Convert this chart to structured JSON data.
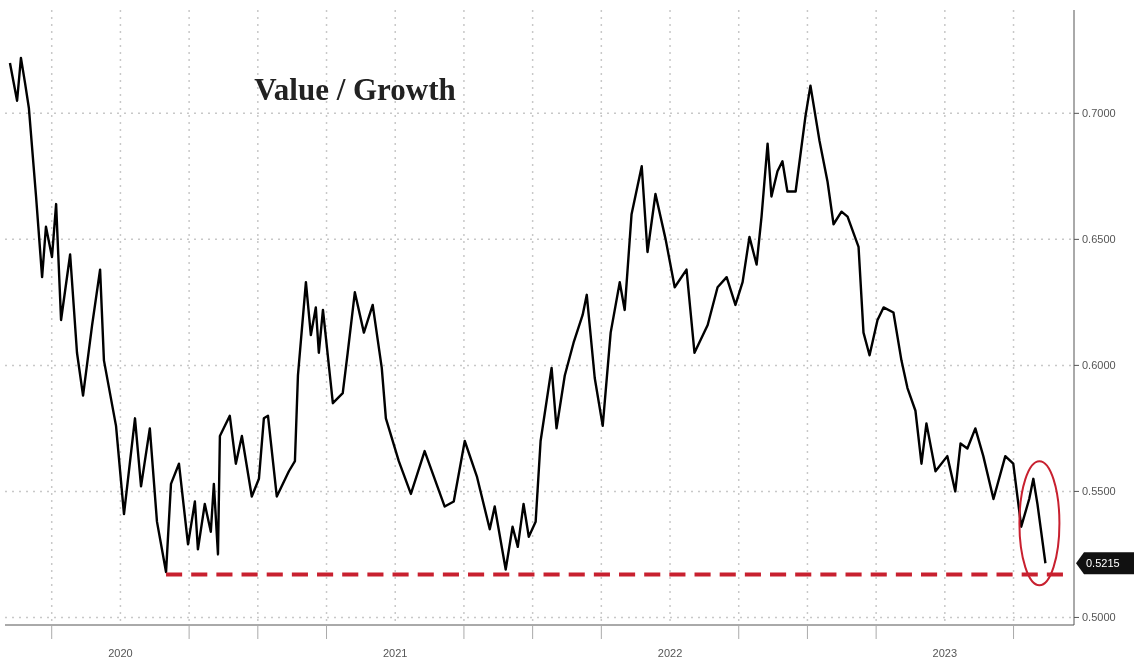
{
  "chart_data": {
    "type": "line",
    "title": "Value / Growth",
    "x": [
      2020.098,
      2020.124,
      2020.138,
      2020.153,
      2020.167,
      2020.193,
      2020.215,
      2020.229,
      2020.251,
      2020.266,
      2020.284,
      2020.317,
      2020.342,
      2020.364,
      2020.397,
      2020.426,
      2020.44,
      2020.484,
      2020.513,
      2020.553,
      2020.575,
      2020.607,
      2020.633,
      2020.666,
      2020.684,
      2020.713,
      2020.746,
      2020.771,
      2020.782,
      2020.807,
      2020.829,
      2020.84,
      2020.855,
      2020.862,
      2020.898,
      2020.92,
      2020.942,
      2020.978,
      2021.004,
      2021.022,
      2021.037,
      2021.069,
      2021.113,
      2021.135,
      2021.146,
      2021.175,
      2021.193,
      2021.211,
      2021.222,
      2021.237,
      2021.273,
      2021.309,
      2021.327,
      2021.353,
      2021.386,
      2021.418,
      2021.451,
      2021.466,
      2021.513,
      2021.557,
      2021.607,
      2021.68,
      2021.713,
      2021.753,
      2021.797,
      2021.844,
      2021.862,
      2021.902,
      2021.927,
      2021.946,
      2021.967,
      2021.986,
      2022.011,
      2022.029,
      2022.069,
      2022.087,
      2022.117,
      2022.149,
      2022.182,
      2022.197,
      2022.226,
      2022.255,
      2022.284,
      2022.317,
      2022.335,
      2022.36,
      2022.397,
      2022.418,
      2022.447,
      2022.484,
      2022.517,
      2022.56,
      2022.589,
      2022.637,
      2022.673,
      2022.706,
      2022.738,
      2022.764,
      2022.789,
      2022.815,
      2022.833,
      2022.855,
      2022.869,
      2022.891,
      2022.909,
      2022.927,
      2022.957,
      2022.993,
      2023.011,
      2023.044,
      2023.073,
      2023.095,
      2023.124,
      2023.146,
      2023.186,
      2023.204,
      2023.226,
      2023.255,
      2023.277,
      2023.313,
      2023.342,
      2023.364,
      2023.393,
      2023.415,
      2023.433,
      2023.466,
      2023.509,
      2023.538,
      2023.557,
      2023.582,
      2023.611,
      2023.64,
      2023.677,
      2023.72,
      2023.749,
      2023.778,
      2023.807,
      2023.822,
      2023.837,
      2023.866
    ],
    "series": [
      {
        "type": "line",
        "color": "#000000",
        "values": [
          0.72,
          0.705,
          0.722,
          0.712,
          0.702,
          0.667,
          0.635,
          0.655,
          0.643,
          0.664,
          0.618,
          0.644,
          0.605,
          0.588,
          0.616,
          0.638,
          0.602,
          0.576,
          0.541,
          0.579,
          0.552,
          0.575,
          0.538,
          0.518,
          0.553,
          0.561,
          0.529,
          0.546,
          0.527,
          0.545,
          0.534,
          0.553,
          0.525,
          0.572,
          0.58,
          0.561,
          0.572,
          0.548,
          0.555,
          0.579,
          0.58,
          0.548,
          0.558,
          0.562,
          0.596,
          0.633,
          0.612,
          0.623,
          0.605,
          0.622,
          0.585,
          0.589,
          0.605,
          0.629,
          0.613,
          0.624,
          0.599,
          0.579,
          0.562,
          0.549,
          0.566,
          0.544,
          0.546,
          0.57,
          0.556,
          0.535,
          0.544,
          0.519,
          0.536,
          0.528,
          0.545,
          0.532,
          0.538,
          0.57,
          0.599,
          0.575,
          0.596,
          0.609,
          0.62,
          0.628,
          0.595,
          0.576,
          0.613,
          0.633,
          0.622,
          0.66,
          0.679,
          0.645,
          0.668,
          0.65,
          0.631,
          0.638,
          0.605,
          0.616,
          0.631,
          0.635,
          0.624,
          0.633,
          0.651,
          0.64,
          0.659,
          0.688,
          0.667,
          0.677,
          0.681,
          0.669,
          0.669,
          0.699,
          0.711,
          0.689,
          0.673,
          0.656,
          0.661,
          0.659,
          0.647,
          0.613,
          0.604,
          0.618,
          0.623,
          0.621,
          0.602,
          0.591,
          0.582,
          0.561,
          0.577,
          0.558,
          0.564,
          0.55,
          0.569,
          0.567,
          0.575,
          0.564,
          0.547,
          0.564,
          0.561,
          0.536,
          0.547,
          0.555,
          0.545,
          0.5215
        ]
      },
      {
        "type": "line",
        "color": "#c8202f",
        "line_style": "dashed",
        "x": [
          2020.666,
          2023.93
        ],
        "values": [
          0.517,
          0.517
        ]
      }
    ],
    "xlim": [
      2020.08,
      2023.97
    ],
    "xticks": [
      {
        "value": 2020.25,
        "label": null
      },
      {
        "value": 2020.5,
        "label": "2020"
      },
      {
        "value": 2020.75,
        "label": null
      },
      {
        "value": 2021,
        "label": null
      },
      {
        "value": 2021.25,
        "label": null
      },
      {
        "value": 2021.5,
        "label": "2021"
      },
      {
        "value": 2021.75,
        "label": null
      },
      {
        "value": 2022,
        "label": null
      },
      {
        "value": 2022.25,
        "label": null
      },
      {
        "value": 2022.5,
        "label": "2022"
      },
      {
        "value": 2022.75,
        "label": null
      },
      {
        "value": 2023,
        "label": null
      },
      {
        "value": 2023.25,
        "label": null
      },
      {
        "value": 2023.5,
        "label": "2023"
      },
      {
        "value": 2023.75,
        "label": null
      }
    ],
    "ylim": [
      0.497,
      0.741
    ],
    "yticks": [
      {
        "value": 0.5,
        "label": "0.5000"
      },
      {
        "value": 0.55,
        "label": "0.5500"
      },
      {
        "value": 0.6,
        "label": "0.6000"
      },
      {
        "value": 0.65,
        "label": "0.6500"
      },
      {
        "value": 0.7,
        "label": "0.7000"
      }
    ],
    "grid": true,
    "annotations": [
      "0.5215"
    ]
  }
}
